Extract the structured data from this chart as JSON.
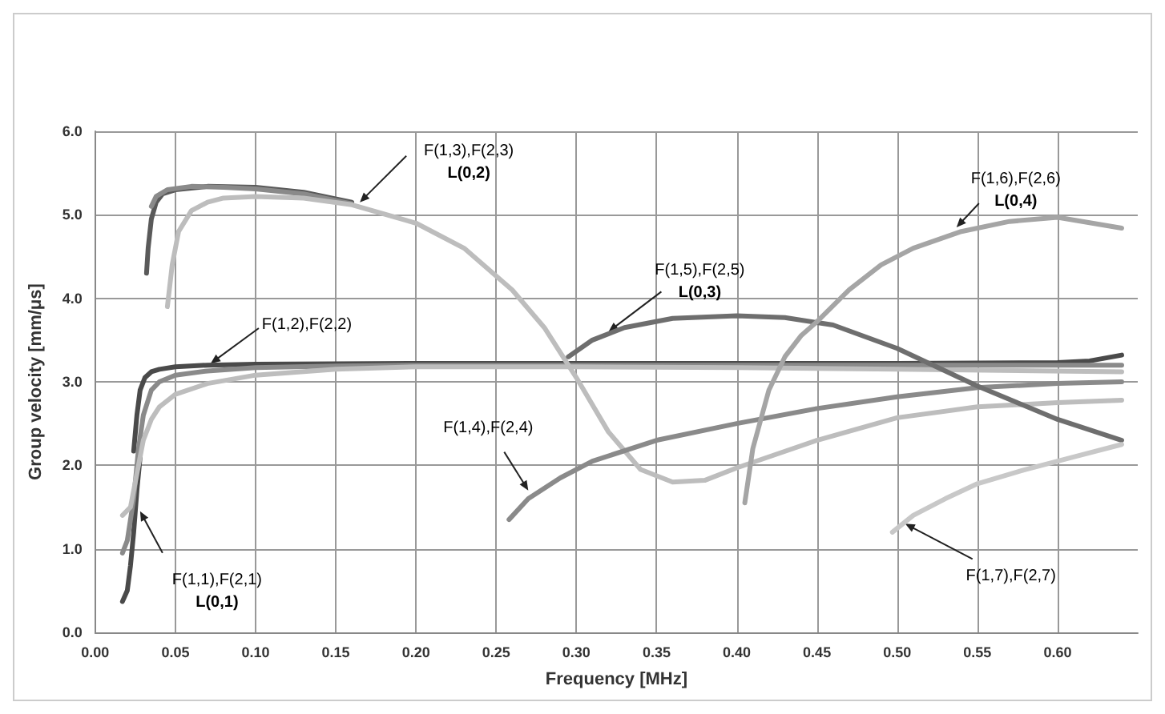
{
  "chart_data": {
    "type": "line",
    "xlabel": "Frequency [MHz]",
    "ylabel": "Group velocity [mm/μs]",
    "xlim": [
      0,
      0.65
    ],
    "ylim": [
      0,
      6
    ],
    "xticks": [
      {
        "value": 0,
        "label": "0.00"
      },
      {
        "value": 0.05,
        "label": "0.05"
      },
      {
        "value": 0.1,
        "label": "0.10"
      },
      {
        "value": 0.15,
        "label": "0.15"
      },
      {
        "value": 0.2,
        "label": "0.20"
      },
      {
        "value": 0.25,
        "label": "0.25"
      },
      {
        "value": 0.3,
        "label": "0.30"
      },
      {
        "value": 0.35,
        "label": "0.35"
      },
      {
        "value": 0.4,
        "label": "0.40"
      },
      {
        "value": 0.45,
        "label": "0.45"
      },
      {
        "value": 0.5,
        "label": "0.50"
      },
      {
        "value": 0.55,
        "label": "0.55"
      },
      {
        "value": 0.6,
        "label": "0.60"
      }
    ],
    "yticks": [
      {
        "value": 0,
        "label": "0.0"
      },
      {
        "value": 1,
        "label": "1.0"
      },
      {
        "value": 2,
        "label": "2.0"
      },
      {
        "value": 3,
        "label": "3.0"
      },
      {
        "value": 4,
        "label": "4.0"
      },
      {
        "value": 5,
        "label": "5.0"
      },
      {
        "value": 6,
        "label": "6.0"
      }
    ],
    "grid": true,
    "marker": "none",
    "line_style": "solid",
    "series": [
      {
        "color": "#4a4a4a",
        "x": [
          0.017,
          0.02,
          0.022,
          0.024,
          0.026,
          0.028
        ],
        "values": [
          0.37,
          0.5,
          0.8,
          1.2,
          1.7,
          2.1
        ]
      },
      {
        "color": "#4a4a4a",
        "x": [
          0.024,
          0.026,
          0.028,
          0.031,
          0.035,
          0.04,
          0.05,
          0.07,
          0.1,
          0.2,
          0.3,
          0.4,
          0.5,
          0.6,
          0.62,
          0.64
        ],
        "values": [
          2.17,
          2.6,
          2.9,
          3.05,
          3.12,
          3.15,
          3.18,
          3.2,
          3.21,
          3.22,
          3.22,
          3.22,
          3.22,
          3.23,
          3.25,
          3.32
        ]
      },
      {
        "color": "#8a8a8a",
        "x": [
          0.017,
          0.02,
          0.024,
          0.027,
          0.03,
          0.035,
          0.04,
          0.05,
          0.07,
          0.1,
          0.15,
          0.2,
          0.3,
          0.4,
          0.5,
          0.64
        ],
        "values": [
          0.95,
          1.1,
          1.6,
          2.2,
          2.6,
          2.9,
          3.0,
          3.08,
          3.13,
          3.17,
          3.19,
          3.2,
          3.2,
          3.2,
          3.2,
          3.2
        ]
      },
      {
        "color": "#bdbdbd",
        "x": [
          0.017,
          0.022,
          0.026,
          0.03,
          0.035,
          0.04,
          0.05,
          0.07,
          0.1,
          0.15,
          0.2,
          0.3,
          0.4,
          0.5,
          0.64
        ],
        "values": [
          1.4,
          1.5,
          1.9,
          2.3,
          2.55,
          2.7,
          2.85,
          2.98,
          3.08,
          3.15,
          3.18,
          3.18,
          3.17,
          3.15,
          3.12
        ]
      },
      {
        "color": "#5a5a5a",
        "x": [
          0.032,
          0.033,
          0.035,
          0.038,
          0.042,
          0.05,
          0.07,
          0.1,
          0.13,
          0.16
        ],
        "values": [
          4.3,
          4.6,
          4.95,
          5.15,
          5.25,
          5.3,
          5.34,
          5.33,
          5.27,
          5.15
        ]
      },
      {
        "color": "#8a8a8a",
        "x": [
          0.035,
          0.038,
          0.045,
          0.06,
          0.08,
          0.1,
          0.13,
          0.16
        ],
        "values": [
          5.1,
          5.22,
          5.3,
          5.34,
          5.33,
          5.31,
          5.25,
          5.13
        ]
      },
      {
        "color": "#bdbdbd",
        "x": [
          0.045,
          0.048,
          0.052,
          0.06,
          0.07,
          0.08,
          0.1,
          0.13,
          0.16,
          0.2,
          0.23,
          0.26,
          0.28,
          0.3,
          0.32,
          0.34,
          0.36,
          0.38,
          0.4,
          0.45,
          0.5,
          0.55,
          0.6,
          0.64
        ],
        "values": [
          3.9,
          4.4,
          4.8,
          5.05,
          5.15,
          5.2,
          5.22,
          5.2,
          5.12,
          4.9,
          4.6,
          4.1,
          3.65,
          3.05,
          2.4,
          1.95,
          1.8,
          1.82,
          1.97,
          2.3,
          2.57,
          2.7,
          2.75,
          2.78
        ]
      },
      {
        "color": "#8a8a8a",
        "x": [
          0.258,
          0.27,
          0.29,
          0.31,
          0.35,
          0.4,
          0.45,
          0.5,
          0.55,
          0.6,
          0.64
        ],
        "values": [
          1.35,
          1.6,
          1.85,
          2.05,
          2.3,
          2.5,
          2.68,
          2.82,
          2.93,
          2.98,
          3.0
        ]
      },
      {
        "color": "#6e6e6e",
        "x": [
          0.295,
          0.31,
          0.33,
          0.36,
          0.4,
          0.43,
          0.46,
          0.5,
          0.55,
          0.6,
          0.64
        ],
        "values": [
          3.3,
          3.5,
          3.65,
          3.76,
          3.79,
          3.77,
          3.68,
          3.4,
          2.95,
          2.55,
          2.3
        ]
      },
      {
        "color": "#a5a5a5",
        "x": [
          0.405,
          0.41,
          0.42,
          0.43,
          0.44,
          0.45,
          0.47,
          0.49,
          0.51,
          0.54,
          0.57,
          0.6,
          0.64
        ],
        "values": [
          1.55,
          2.2,
          2.9,
          3.3,
          3.55,
          3.72,
          4.1,
          4.4,
          4.6,
          4.8,
          4.92,
          4.97,
          4.84
        ]
      },
      {
        "color": "#c8c8c8",
        "x": [
          0.497,
          0.51,
          0.53,
          0.55,
          0.58,
          0.61,
          0.64
        ],
        "values": [
          1.2,
          1.4,
          1.6,
          1.78,
          1.95,
          2.1,
          2.25
        ]
      }
    ],
    "annotations": [
      {
        "text": "F(1,1),F(2,1)\nL(0,1)",
        "x": 0.028,
        "y": 1.45
      },
      {
        "text": "F(1,2),F(2,2)",
        "x": 0.072,
        "y": 3.22
      },
      {
        "text": "F(1,3),F(2,3)\nL(0,2)",
        "x": 0.165,
        "y": 5.15
      },
      {
        "text": "F(1,4),F(2,4)",
        "x": 0.27,
        "y": 1.7
      },
      {
        "text": "F(1,5),F(2,5)\nL(0,3)",
        "x": 0.32,
        "y": 3.6
      },
      {
        "text": "F(1,6),F(2,6)\nL(0,4)",
        "x": 0.537,
        "y": 4.85
      },
      {
        "text": "F(1,7),F(2,7)",
        "x": 0.505,
        "y": 1.3
      }
    ]
  }
}
